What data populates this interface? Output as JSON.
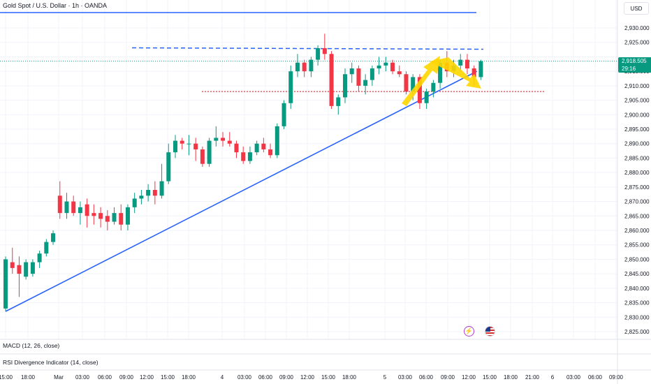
{
  "header": {
    "title": "Gold Spot / U.S. Dollar · 1h · OANDA",
    "currency": "USD"
  },
  "price_label": {
    "value": "2,918.505",
    "countdown": "29:16",
    "color": "#089981"
  },
  "indicators": {
    "macd": "MACD (12, 26, close)",
    "rsi": "RSI Divergence Indicator (14, close)"
  },
  "icons": [
    "lightning-icon",
    "us-flag-icon"
  ],
  "colors": {
    "up": "#089981",
    "down": "#f23645",
    "trendline": "#2962ff",
    "resistance": "#2962ff",
    "support": "#f23645",
    "arrow": "#ffd600"
  },
  "chart_data": {
    "type": "candlestick",
    "symbol": "XAUUSD",
    "timeframe": "1h",
    "ylim": [
      2822,
      2935
    ],
    "y_ticks": [
      2825,
      2830,
      2835,
      2840,
      2845,
      2850,
      2855,
      2860,
      2865,
      2870,
      2875,
      2880,
      2885,
      2890,
      2895,
      2900,
      2905,
      2910,
      2915,
      2920,
      2925,
      2930
    ],
    "y_tick_labels": [
      "2,825.000",
      "2,830.000",
      "2,835.000",
      "2,840.000",
      "2,845.000",
      "2,850.000",
      "2,855.000",
      "2,860.000",
      "2,865.000",
      "2,870.000",
      "2,875.000",
      "2,880.000",
      "2,885.000",
      "2,890.000",
      "2,895.000",
      "2,900.000",
      "2,905.000",
      "2,910.000",
      "2,915.000",
      "2,920.000",
      "2,925.000",
      "2,930.000"
    ],
    "x_labels": [
      "15:00",
      "18:00",
      "Mar",
      "03:00",
      "06:00",
      "09:00",
      "12:00",
      "15:00",
      "18:00",
      "4",
      "03:00",
      "06:00",
      "09:00",
      "12:00",
      "15:00",
      "18:00",
      "5",
      "03:00",
      "06:00",
      "09:00",
      "12:00",
      "15:00",
      "18:00",
      "21:00",
      "6",
      "03:00",
      "06:00",
      "09:00"
    ],
    "candles": [
      {
        "o": 2833,
        "h": 2851,
        "l": 2832,
        "c": 2850
      },
      {
        "o": 2849,
        "h": 2854,
        "l": 2845,
        "c": 2847
      },
      {
        "o": 2848,
        "h": 2851,
        "l": 2837,
        "c": 2845
      },
      {
        "o": 2844,
        "h": 2850,
        "l": 2843,
        "c": 2849
      },
      {
        "o": 2845,
        "h": 2850,
        "l": 2844,
        "c": 2849
      },
      {
        "o": 2849,
        "h": 2853,
        "l": 2847,
        "c": 2852
      },
      {
        "o": 2852,
        "h": 2857,
        "l": 2851,
        "c": 2856
      },
      {
        "o": 2856,
        "h": 2860,
        "l": 2855,
        "c": 2859
      },
      {
        "o": 2872,
        "h": 2877,
        "l": 2864,
        "c": 2866
      },
      {
        "o": 2866,
        "h": 2873,
        "l": 2864,
        "c": 2870
      },
      {
        "o": 2870,
        "h": 2872,
        "l": 2865,
        "c": 2866
      },
      {
        "o": 2866,
        "h": 2870,
        "l": 2862,
        "c": 2868
      },
      {
        "o": 2869,
        "h": 2871,
        "l": 2861,
        "c": 2865
      },
      {
        "o": 2866,
        "h": 2869,
        "l": 2862,
        "c": 2865
      },
      {
        "o": 2866,
        "h": 2868,
        "l": 2861,
        "c": 2864
      },
      {
        "o": 2865,
        "h": 2867,
        "l": 2860,
        "c": 2863
      },
      {
        "o": 2863,
        "h": 2868,
        "l": 2862,
        "c": 2866
      },
      {
        "o": 2866,
        "h": 2869,
        "l": 2860,
        "c": 2862
      },
      {
        "o": 2862,
        "h": 2869,
        "l": 2860,
        "c": 2868
      },
      {
        "o": 2868,
        "h": 2873,
        "l": 2866,
        "c": 2871
      },
      {
        "o": 2871,
        "h": 2874,
        "l": 2869,
        "c": 2872
      },
      {
        "o": 2872,
        "h": 2876,
        "l": 2870,
        "c": 2874
      },
      {
        "o": 2874,
        "h": 2877,
        "l": 2869,
        "c": 2872
      },
      {
        "o": 2872,
        "h": 2883,
        "l": 2871,
        "c": 2877
      },
      {
        "o": 2877,
        "h": 2890,
        "l": 2876,
        "c": 2887
      },
      {
        "o": 2887,
        "h": 2893,
        "l": 2885,
        "c": 2891
      },
      {
        "o": 2891,
        "h": 2892,
        "l": 2888,
        "c": 2890
      },
      {
        "o": 2890,
        "h": 2893,
        "l": 2886,
        "c": 2890
      },
      {
        "o": 2890,
        "h": 2892,
        "l": 2884,
        "c": 2888
      },
      {
        "o": 2888,
        "h": 2889,
        "l": 2882,
        "c": 2883
      },
      {
        "o": 2883,
        "h": 2892,
        "l": 2882,
        "c": 2891
      },
      {
        "o": 2891,
        "h": 2896,
        "l": 2889,
        "c": 2892
      },
      {
        "o": 2892,
        "h": 2894,
        "l": 2889,
        "c": 2891
      },
      {
        "o": 2891,
        "h": 2894,
        "l": 2889,
        "c": 2890
      },
      {
        "o": 2890,
        "h": 2891,
        "l": 2885,
        "c": 2887
      },
      {
        "o": 2887,
        "h": 2889,
        "l": 2883,
        "c": 2884
      },
      {
        "o": 2884,
        "h": 2889,
        "l": 2883,
        "c": 2887
      },
      {
        "o": 2887,
        "h": 2891,
        "l": 2886,
        "c": 2890
      },
      {
        "o": 2890,
        "h": 2892,
        "l": 2887,
        "c": 2888
      },
      {
        "o": 2888,
        "h": 2890,
        "l": 2885,
        "c": 2886
      },
      {
        "o": 2886,
        "h": 2897,
        "l": 2885,
        "c": 2896
      },
      {
        "o": 2896,
        "h": 2905,
        "l": 2895,
        "c": 2904
      },
      {
        "o": 2904,
        "h": 2917,
        "l": 2902,
        "c": 2915
      },
      {
        "o": 2915,
        "h": 2921,
        "l": 2913,
        "c": 2918
      },
      {
        "o": 2918,
        "h": 2919,
        "l": 2913,
        "c": 2915
      },
      {
        "o": 2915,
        "h": 2920,
        "l": 2913,
        "c": 2919
      },
      {
        "o": 2919,
        "h": 2924,
        "l": 2917,
        "c": 2923
      },
      {
        "o": 2923,
        "h": 2928,
        "l": 2919,
        "c": 2921
      },
      {
        "o": 2921,
        "h": 2922,
        "l": 2902,
        "c": 2903
      },
      {
        "o": 2903,
        "h": 2907,
        "l": 2900,
        "c": 2906
      },
      {
        "o": 2906,
        "h": 2916,
        "l": 2904,
        "c": 2914
      },
      {
        "o": 2914,
        "h": 2918,
        "l": 2911,
        "c": 2916
      },
      {
        "o": 2916,
        "h": 2917,
        "l": 2908,
        "c": 2910
      },
      {
        "o": 2910,
        "h": 2914,
        "l": 2907,
        "c": 2912
      },
      {
        "o": 2912,
        "h": 2917,
        "l": 2910,
        "c": 2916
      },
      {
        "o": 2916,
        "h": 2920,
        "l": 2914,
        "c": 2917
      },
      {
        "o": 2917,
        "h": 2920,
        "l": 2915,
        "c": 2918
      },
      {
        "o": 2918,
        "h": 2919,
        "l": 2914,
        "c": 2915
      },
      {
        "o": 2915,
        "h": 2917,
        "l": 2913,
        "c": 2914
      },
      {
        "o": 2914,
        "h": 2915,
        "l": 2907,
        "c": 2908
      },
      {
        "o": 2908,
        "h": 2914,
        "l": 2905,
        "c": 2913
      },
      {
        "o": 2913,
        "h": 2914,
        "l": 2902,
        "c": 2904
      },
      {
        "o": 2904,
        "h": 2909,
        "l": 2902,
        "c": 2908
      },
      {
        "o": 2908,
        "h": 2912,
        "l": 2906,
        "c": 2911
      },
      {
        "o": 2911,
        "h": 2919,
        "l": 2909,
        "c": 2918
      },
      {
        "o": 2918,
        "h": 2922,
        "l": 2913,
        "c": 2915
      },
      {
        "o": 2915,
        "h": 2919,
        "l": 2913,
        "c": 2917
      },
      {
        "o": 2917,
        "h": 2921,
        "l": 2915,
        "c": 2919
      },
      {
        "o": 2919,
        "h": 2921,
        "l": 2914,
        "c": 2916
      },
      {
        "o": 2916,
        "h": 2917,
        "l": 2910,
        "c": 2913
      },
      {
        "o": 2913,
        "h": 2919,
        "l": 2912,
        "c": 2918.5
      }
    ],
    "annotations": {
      "resistance_level": 2923,
      "support_level": 2908,
      "trendline": [
        {
          "bar": 0,
          "price": 2832
        },
        {
          "bar": 69,
          "price": 2915
        }
      ],
      "top_line": 2935.5
    },
    "title": "",
    "xlabel": "",
    "ylabel": "",
    "grid": true
  }
}
